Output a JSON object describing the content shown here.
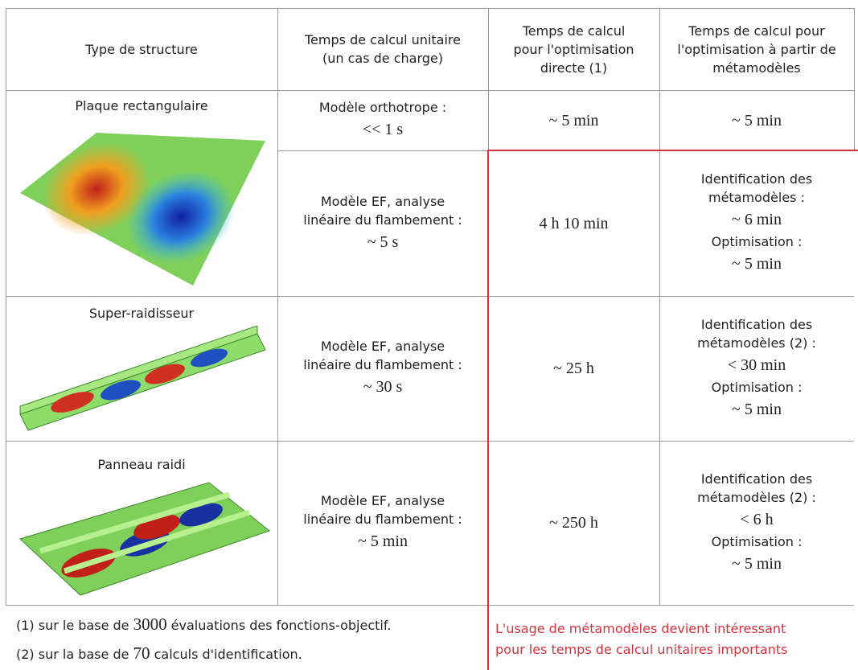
{
  "table": {
    "header": [
      [
        "Type de structure"
      ],
      [
        "Temps de calcul unitaire",
        "(un cas de charge)"
      ],
      [
        "Temps de calcul",
        "pour l'optimisation",
        "directe (1)"
      ],
      [
        "Temps de calcul pour",
        "l'optimisation à partir de",
        "métamodèles"
      ]
    ],
    "rows": [
      {
        "structure": "Plaque rectangulaire",
        "cases": [
          {
            "unit": [
              "Modèle orthotrope :",
              "<< 1 s"
            ],
            "direct": "~ 5 min",
            "meta": [
              "~ 5 min"
            ]
          },
          {
            "unit": [
              "Modèle EF, analyse",
              "linéaire du flambement :",
              "~ 5 s"
            ],
            "direct": "4 h 10 min",
            "meta": [
              "Identification des",
              "métamodèles :",
              "~ 6 min",
              "Optimisation :",
              "~ 5 min"
            ]
          }
        ]
      },
      {
        "structure": "Super-raidisseur",
        "cases": [
          {
            "unit": [
              "Modèle EF, analyse",
              "linéaire du flambement :",
              "~ 30 s"
            ],
            "direct": "~ 25 h",
            "meta": [
              "Identification des",
              "métamodèles (2) :",
              "< 30 min",
              "Optimisation :",
              "~ 5 min"
            ]
          }
        ]
      },
      {
        "structure": "Panneau raidi",
        "cases": [
          {
            "unit": [
              "Modèle EF, analyse",
              "linéaire du flambement :",
              "~ 5 min"
            ],
            "direct": "~ 250 h",
            "meta": [
              "Identification des",
              "métamodèles (2) :",
              "< 6 h",
              "Optimisation :",
              "~ 5 min"
            ]
          }
        ]
      }
    ]
  },
  "notes": [
    {
      "before": "(1) sur le base de ",
      "number": "3000",
      "after": " évaluations des fonctions-objectif."
    },
    {
      "before": "(2) sur la base de ",
      "number": "70",
      "after": " calculs d'identification."
    }
  ],
  "remark": [
    "L'usage de métamodèles devient intéressant",
    "pour les temps de calcul unitaires importants"
  ]
}
